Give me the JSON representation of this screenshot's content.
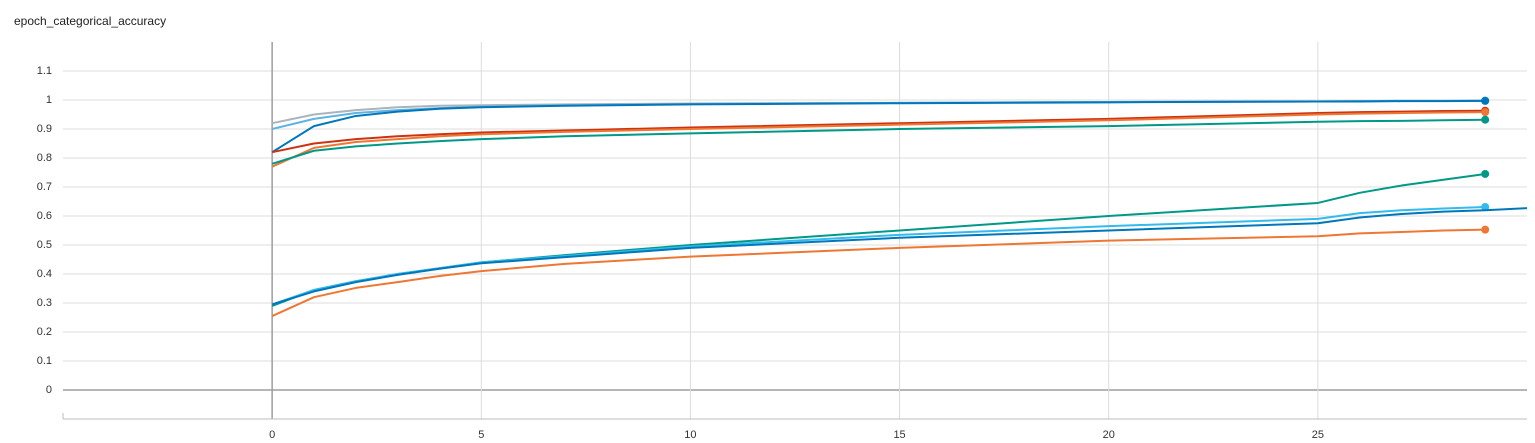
{
  "chart_data": {
    "type": "line",
    "title": "epoch_categorical_accuracy",
    "x": [
      0,
      1,
      2,
      3,
      4,
      5,
      7,
      10,
      15,
      20,
      25,
      26,
      27,
      28,
      29,
      30
    ],
    "xlim": [
      -5,
      30
    ],
    "xticks": [
      0,
      5,
      10,
      15,
      20,
      25
    ],
    "ylim": [
      -0.1,
      1.2
    ],
    "yticks": [
      0,
      0.1,
      0.2,
      0.3,
      0.4,
      0.5,
      0.6,
      0.7,
      0.8,
      0.9,
      1,
      1.1
    ],
    "grid": true,
    "series": [
      {
        "color": "#aab4bd",
        "values": [
          0.92,
          0.95,
          0.965,
          0.975,
          0.98,
          0.982,
          0.985,
          0.988,
          0.99,
          0.993,
          0.995,
          0.996,
          0.997,
          0.997,
          0.998,
          null
        ]
      },
      {
        "color": "#5fb3e0",
        "values": [
          0.9,
          0.935,
          0.955,
          0.965,
          0.972,
          0.977,
          0.982,
          0.986,
          0.99,
          0.993,
          0.995,
          0.996,
          0.997,
          0.997,
          0.998,
          null
        ]
      },
      {
        "color": "#0077bb",
        "values": [
          0.82,
          0.91,
          0.945,
          0.96,
          0.97,
          0.975,
          0.98,
          0.985,
          0.989,
          0.992,
          0.995,
          0.995,
          0.996,
          0.996,
          0.997,
          null
        ]
      },
      {
        "color": "#cc3311",
        "values": [
          0.82,
          0.85,
          0.865,
          0.875,
          0.882,
          0.888,
          0.895,
          0.905,
          0.92,
          0.935,
          0.955,
          0.958,
          0.96,
          0.962,
          0.963,
          null
        ]
      },
      {
        "color": "#ee7733",
        "values": [
          0.77,
          0.835,
          0.855,
          0.865,
          0.875,
          0.882,
          0.89,
          0.9,
          0.915,
          0.93,
          0.95,
          0.953,
          0.955,
          0.957,
          0.958,
          null
        ]
      },
      {
        "color": "#009988",
        "values": [
          0.78,
          0.825,
          0.84,
          0.85,
          0.858,
          0.865,
          0.875,
          0.885,
          0.9,
          0.91,
          0.925,
          0.927,
          0.928,
          0.93,
          0.932,
          null
        ]
      },
      {
        "color": "#009988",
        "values": [
          0.29,
          0.345,
          0.375,
          0.4,
          0.42,
          0.44,
          0.465,
          0.5,
          0.55,
          0.6,
          0.645,
          0.68,
          0.705,
          0.725,
          0.745,
          null
        ]
      },
      {
        "color": "#33bbee",
        "values": [
          0.295,
          0.345,
          0.375,
          0.4,
          0.42,
          0.44,
          0.462,
          0.495,
          0.535,
          0.565,
          0.59,
          0.61,
          0.62,
          0.626,
          0.631,
          null
        ]
      },
      {
        "color": "#0077bb",
        "values": [
          0.295,
          0.34,
          0.372,
          0.397,
          0.418,
          0.437,
          0.458,
          0.49,
          0.525,
          0.55,
          0.575,
          0.595,
          0.607,
          0.615,
          0.62,
          0.627
        ]
      },
      {
        "color": "#ee7733",
        "values": [
          0.255,
          0.32,
          0.352,
          0.372,
          0.393,
          0.41,
          0.435,
          0.46,
          0.49,
          0.515,
          0.53,
          0.54,
          0.545,
          0.55,
          0.553,
          null
        ]
      }
    ]
  }
}
